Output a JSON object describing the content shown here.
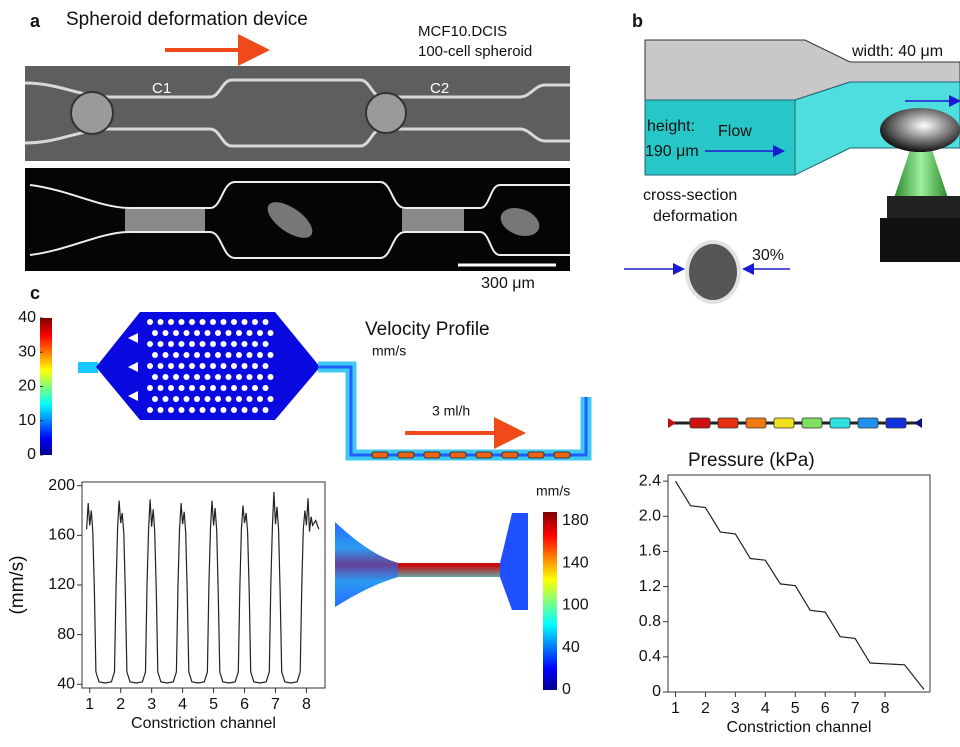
{
  "panels": {
    "a": {
      "label": "a",
      "title": "Spheroid deformation device",
      "cell_line": "MCF10.DCIS",
      "spheroid": "100-cell spheroid",
      "channel_labels": [
        "C1",
        "C2"
      ],
      "scale_bar": "300 μm"
    },
    "b": {
      "label": "b",
      "width": "width: 40 μm",
      "height_label": "height:",
      "height_value": "190 μm",
      "flow": "Flow",
      "cross_section": [
        "cross-section",
        "deformation"
      ],
      "deformation_pct": "30%"
    },
    "c": {
      "label": "c",
      "velocity_title": "Velocity Profile",
      "velocity_unit": "mm/s",
      "flow_rate": "3 ml/h",
      "colorbar": {
        "lim": [
          0,
          40
        ],
        "ticks": [
          0,
          10,
          20,
          30,
          40
        ]
      },
      "colorbar_bottom_unit": "mm/s",
      "colorbar_bottom": [
        "180",
        "140",
        "100",
        "40",
        "0"
      ]
    }
  },
  "chart_data": [
    {
      "type": "line",
      "x_label": "Constriction channel",
      "y_label": "(mm/s)",
      "color": "#222222",
      "x": [
        0.9,
        0.95,
        1,
        1.05,
        1.1,
        1.15,
        1.2,
        1.3,
        1.5,
        1.7,
        1.8,
        1.85,
        1.9,
        1.95,
        2,
        2.05,
        2.1,
        2.15,
        2.2,
        2.3,
        2.5,
        2.7,
        2.8,
        2.85,
        2.9,
        2.95,
        3,
        3.05,
        3.1,
        3.15,
        3.2,
        3.3,
        3.5,
        3.7,
        3.8,
        3.85,
        3.9,
        3.95,
        4,
        4.05,
        4.1,
        4.15,
        4.2,
        4.3,
        4.5,
        4.7,
        4.8,
        4.85,
        4.9,
        4.95,
        5,
        5.05,
        5.1,
        5.15,
        5.2,
        5.3,
        5.5,
        5.7,
        5.8,
        5.85,
        5.9,
        5.95,
        6,
        6.05,
        6.1,
        6.15,
        6.2,
        6.3,
        6.5,
        6.7,
        6.8,
        6.85,
        6.9,
        6.95,
        7,
        7.05,
        7.1,
        7.15,
        7.2,
        7.3,
        7.5,
        7.7,
        7.8,
        7.85,
        7.9,
        7.95,
        8,
        8.05,
        8.1,
        8.15,
        8.2,
        8.3,
        8.4
      ],
      "values": [
        165,
        186,
        168,
        180,
        163,
        115,
        50,
        42,
        41,
        42,
        50,
        120,
        166,
        188,
        170,
        178,
        162,
        115,
        50,
        42,
        41,
        42,
        50,
        120,
        165,
        189,
        167,
        181,
        163,
        115,
        50,
        42,
        41,
        42,
        50,
        120,
        164,
        186,
        169,
        179,
        162,
        115,
        50,
        42,
        41,
        42,
        50,
        120,
        166,
        188,
        168,
        182,
        164,
        115,
        50,
        42,
        41,
        42,
        50,
        120,
        165,
        184,
        170,
        178,
        163,
        115,
        50,
        42,
        41,
        42,
        50,
        120,
        167,
        195,
        169,
        183,
        164,
        115,
        50,
        42,
        41,
        42,
        50,
        120,
        165,
        180,
        168,
        190,
        163,
        175,
        168,
        172,
        165
      ],
      "xlim": [
        0.75,
        8.6
      ],
      "ylim": [
        37,
        203
      ],
      "xticks": [
        1,
        2,
        3,
        4,
        5,
        6,
        7,
        8
      ],
      "yticks": [
        40,
        80,
        120,
        160,
        200
      ]
    },
    {
      "type": "line",
      "title": "Pressure (kPa)",
      "x_label": "Constriction channel",
      "color": "#222222",
      "x": [
        1,
        1.5,
        2,
        2.5,
        3,
        3.5,
        4,
        4.5,
        5,
        5.5,
        6,
        6.5,
        7,
        7.5,
        8.65,
        9.3
      ],
      "values": [
        2.4,
        2.12,
        2.1,
        1.82,
        1.8,
        1.52,
        1.5,
        1.23,
        1.21,
        0.93,
        0.91,
        0.63,
        0.61,
        0.33,
        0.31,
        0.03
      ],
      "xlim": [
        0.75,
        9.5
      ],
      "ylim": [
        0,
        2.47
      ],
      "xticks": [
        1,
        2,
        3,
        4,
        5,
        6,
        7,
        8
      ],
      "yticks": [
        0,
        0.4,
        0.8,
        1.2,
        1.6,
        {
          "value": 2,
          "label": "2.0"
        },
        2.4
      ]
    }
  ]
}
